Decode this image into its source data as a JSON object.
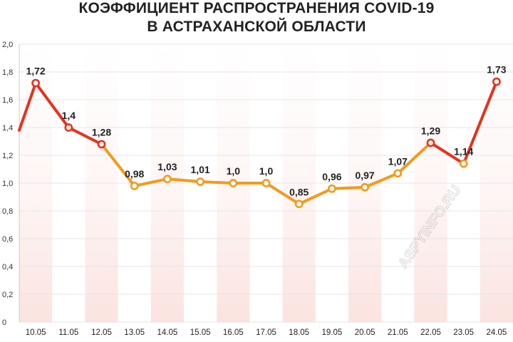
{
  "chart_data": {
    "type": "line",
    "title": "КОЭФФИЦИЕНТ РАСПРОСТРАНЕНИЯ COVID-19",
    "subtitle": "В АСТРАХАНСКОЙ ОБЛАСТИ",
    "categories": [
      "10.05",
      "11.05",
      "12.05",
      "13.05",
      "14.05",
      "15.05",
      "16.05",
      "17.05",
      "18.05",
      "19.05",
      "20.05",
      "21.05",
      "22.05",
      "23.05",
      "24.05"
    ],
    "values": [
      1.72,
      1.4,
      1.28,
      0.98,
      1.03,
      1.01,
      1.0,
      1.0,
      0.85,
      0.96,
      0.97,
      1.07,
      1.29,
      1.14,
      1.73
    ],
    "value_labels": [
      "1,72",
      "1,4",
      "1,28",
      "0,98",
      "1,03",
      "1,01",
      "1,0",
      "1,0",
      "0,85",
      "0,96",
      "0,97",
      "1,07",
      "1,29",
      "1,14",
      "1,73"
    ],
    "start_value": 1.38,
    "y_ticks": [
      "0",
      "0,2",
      "0,4",
      "0,6",
      "0,8",
      "1,0",
      "1,2",
      "1,4",
      "1,6",
      "1,8",
      "2,0"
    ],
    "ylim": [
      0,
      2.0
    ],
    "grid": true,
    "legend": "none",
    "watermark": "ASPYINFO.RU",
    "colors": {
      "high": "#e8311a",
      "low": "#f39a1c",
      "band": "#fbe3e0",
      "grid": "#e4e4e4",
      "marker_fill": "#ffffff"
    }
  }
}
